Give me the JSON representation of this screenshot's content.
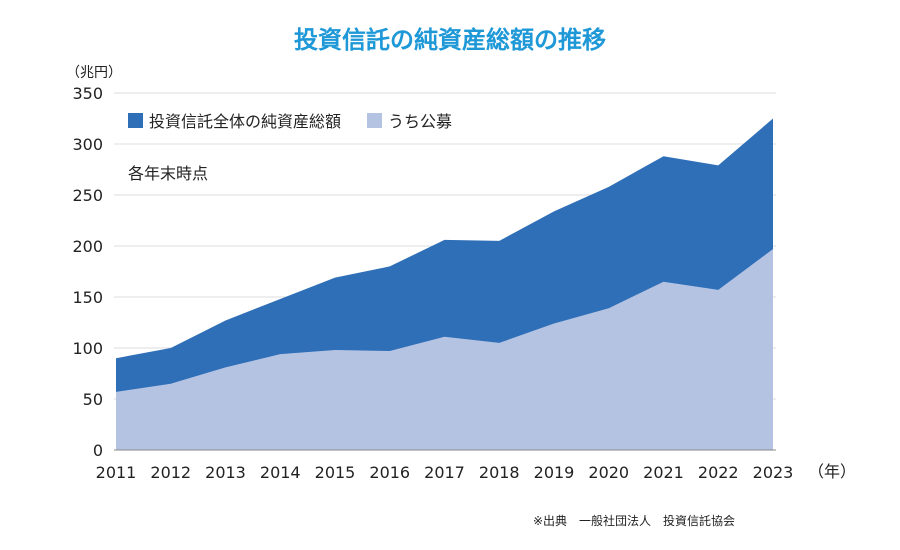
{
  "chart_data": {
    "type": "area",
    "title": "投資信託の純資産総額の推移",
    "ylabel": "（兆円）",
    "xlabel": "（年）",
    "annotation": "各年末時点",
    "source": "※出典　一般社団法人　投資信託協会",
    "ylim": [
      0,
      350
    ],
    "yticks": [
      0,
      50,
      100,
      150,
      200,
      250,
      300,
      350
    ],
    "grid": true,
    "legend": "top-left",
    "x": [
      "2011",
      "2012",
      "2013",
      "2014",
      "2015",
      "2016",
      "2017",
      "2018",
      "2019",
      "2020",
      "2021",
      "2022",
      "2023"
    ],
    "series": [
      {
        "name": "投資信託全体の純資産総額",
        "color": "#2e6fb8",
        "values": [
          90,
          100,
          127,
          148,
          169,
          180,
          206,
          205,
          234,
          258,
          288,
          279,
          325
        ]
      },
      {
        "name": "うち公募",
        "color": "#b5c3e3",
        "values": [
          57,
          65,
          81,
          94,
          98,
          97,
          111,
          105,
          124,
          139,
          165,
          157,
          197
        ]
      }
    ]
  }
}
